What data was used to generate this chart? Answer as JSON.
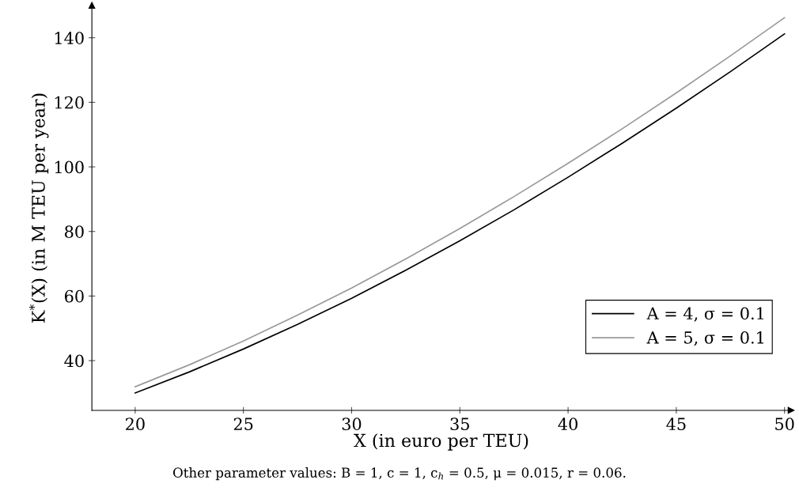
{
  "chart_data": {
    "type": "line",
    "xlabel": "X (in euro per TEU)",
    "ylabel": "K$^{*}$(X) (in M TEU per year)",
    "x": [
      20,
      22.5,
      25,
      27.5,
      30,
      32.5,
      35,
      37.5,
      40,
      42.5,
      45,
      47.5,
      50
    ],
    "series": [
      {
        "name": "A = 4, σ = 0.1",
        "color": "#000000",
        "values": [
          30,
          36.5,
          43.6,
          51.2,
          59.3,
          68,
          77.1,
          86.7,
          96.8,
          107.3,
          118.2,
          129.5,
          141.2
        ]
      },
      {
        "name": "A = 5, σ = 0.1",
        "color": "#999999",
        "values": [
          31.9,
          38.7,
          46.1,
          54.1,
          62.5,
          71.5,
          80.9,
          90.8,
          101.1,
          111.8,
          122.9,
          134.4,
          146.2
        ]
      }
    ],
    "xlim": [
      18,
      50.3
    ],
    "ylim": [
      24.6,
      150
    ],
    "xticks": [
      20,
      25,
      30,
      35,
      40,
      45,
      50
    ],
    "yticks": [
      40,
      60,
      80,
      100,
      120,
      140
    ],
    "grid": false,
    "legend": "bottom right",
    "marker": "none",
    "line_style": "solid",
    "annotations": [
      "Other parameter values: B = 1, c = 1, c$_{h}$ = 0.5, μ = 0.015, r = 0.06."
    ]
  }
}
